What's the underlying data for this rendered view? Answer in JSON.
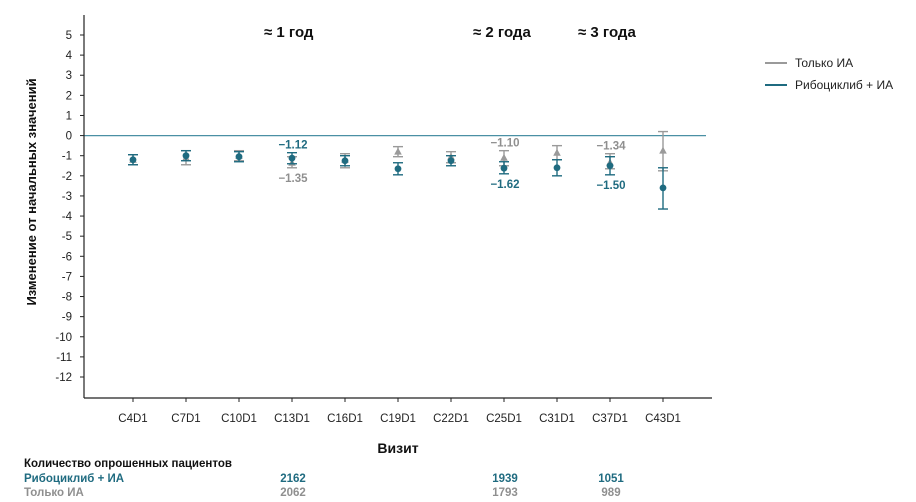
{
  "annotations": {
    "year1": "≈ 1 год",
    "year2": "≈ 2 года",
    "year3": "≈ 3 года"
  },
  "legend": {
    "ia_label": "Только ИА",
    "ribo_label": "Рибоциклиб + ИА"
  },
  "counts": {
    "title": "Количество опрошенных пациентов",
    "ribo_label": "Рибоциклиб + ИА",
    "ia_label": "Только ИА",
    "ribo_values": [
      "2162",
      "1939",
      "1051"
    ],
    "ia_values": [
      "2062",
      "1793",
      "989"
    ]
  },
  "colors": {
    "ribo": "#1f6b80",
    "ia": "#9a9a9a",
    "axis": "#222222",
    "baseline": "#4a90a4",
    "label_ribo": "#1f6b80",
    "label_ia": "#8f8f8f"
  },
  "chart_data": {
    "type": "scatter",
    "title": "",
    "xlabel": "Визит",
    "ylabel": "Изменение от начальных значений",
    "ylim": [
      -13,
      6
    ],
    "yticks": [
      5,
      4,
      3,
      2,
      1,
      0,
      -1,
      -2,
      -3,
      -4,
      -5,
      -6,
      -7,
      -8,
      -9,
      -10,
      -11,
      -12
    ],
    "ytick_labels": [
      "5",
      "4",
      "3",
      "2",
      "1",
      "0",
      "-1",
      "-2",
      "-3",
      "-4",
      "-5",
      "-6",
      "-7",
      "-8",
      "-9",
      "-10",
      "-11",
      "-12"
    ],
    "categories": [
      "C4D1",
      "C7D1",
      "C10D1",
      "C13D1",
      "C16D1",
      "C19D1",
      "C22D1",
      "C25D1",
      "C31D1",
      "C37D1",
      "C43D1"
    ],
    "baseline": 0,
    "series": [
      {
        "name": "Только ИА",
        "marker": "triangle",
        "values": [
          -1.2,
          -1.1,
          -1.0,
          -1.35,
          -1.2,
          -0.8,
          -1.05,
          -1.1,
          -0.85,
          -1.34,
          -0.75
        ],
        "lower": [
          -1.45,
          -1.45,
          -1.25,
          -1.6,
          -1.6,
          -1.05,
          -1.35,
          -1.5,
          -1.2,
          -1.65,
          -1.75
        ],
        "upper": [
          -0.95,
          -0.75,
          -0.75,
          -1.05,
          -0.9,
          -0.55,
          -0.8,
          -0.75,
          -0.5,
          -0.9,
          0.2
        ]
      },
      {
        "name": "Рибоциклиб + ИА",
        "marker": "circle",
        "values": [
          -1.2,
          -1.0,
          -1.05,
          -1.12,
          -1.25,
          -1.65,
          -1.25,
          -1.62,
          -1.6,
          -1.5,
          -2.6
        ],
        "lower": [
          -1.45,
          -1.25,
          -1.3,
          -1.4,
          -1.5,
          -1.95,
          -1.5,
          -1.9,
          -2.0,
          -1.95,
          -3.65
        ],
        "upper": [
          -0.95,
          -0.75,
          -0.8,
          -0.85,
          -1.0,
          -1.35,
          -1.0,
          -1.3,
          -1.2,
          -1.05,
          -1.6
        ]
      }
    ],
    "data_labels": [
      {
        "category": "C13D1",
        "series": "Рибоциклиб + ИА",
        "text": "−1.12",
        "pos": "above"
      },
      {
        "category": "C13D1",
        "series": "Только ИА",
        "text": "−1.35",
        "pos": "below"
      },
      {
        "category": "C25D1",
        "series": "Только ИА",
        "text": "−1.10",
        "pos": "above"
      },
      {
        "category": "C25D1",
        "series": "Рибоциклиб + ИА",
        "text": "−1.62",
        "pos": "below"
      },
      {
        "category": "C37D1",
        "series": "Только ИА",
        "text": "−1.34",
        "pos": "above"
      },
      {
        "category": "C37D1",
        "series": "Рибоциклиб + ИА",
        "text": "−1.50",
        "pos": "below"
      }
    ]
  }
}
